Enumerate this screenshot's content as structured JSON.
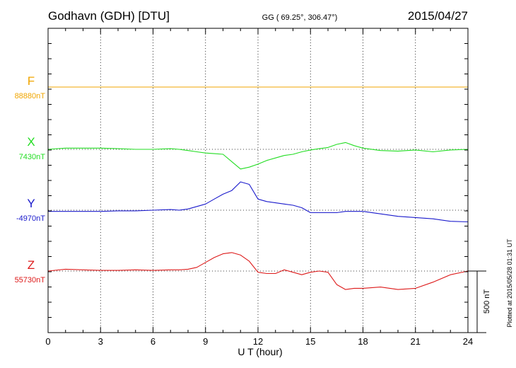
{
  "header": {
    "station": "Godhavn (GDH)  [DTU]",
    "coords": "GG ( 69.25°, 306.47°)",
    "date": "2015/04/27"
  },
  "footer": {
    "plotted": "Plotted at 2015/05/28 01:31  UT"
  },
  "chart_data": {
    "type": "line",
    "xlabel": "U T (hour)",
    "xlim": [
      0,
      24
    ],
    "x_ticks": [
      "0",
      "3",
      "6",
      "9",
      "12",
      "15",
      "18",
      "21",
      "24"
    ],
    "scale_bar": {
      "label": "500 nT",
      "value_nT": 500
    },
    "colors": {
      "F": "#f0a500",
      "X": "#22dd22",
      "Y": "#1a1acc",
      "Z": "#dd1a1a"
    },
    "series": [
      {
        "name": "F",
        "baseline_label": "88880nT",
        "baseline_nT": 88880,
        "x": [
          0,
          24
        ],
        "y": [
          88880,
          88880
        ]
      },
      {
        "name": "X",
        "baseline_label": "7430nT",
        "baseline_nT": 7430,
        "x": [
          0,
          1,
          2,
          3,
          4,
          5,
          6,
          7,
          7.5,
          8,
          8.5,
          9,
          9.5,
          10,
          10.5,
          11,
          11.5,
          12,
          12.5,
          13,
          13.5,
          14,
          14.5,
          15,
          15.5,
          16,
          16.5,
          17,
          17.5,
          18,
          19,
          20,
          21,
          22,
          23,
          24
        ],
        "y": [
          7430,
          7440,
          7440,
          7440,
          7435,
          7430,
          7430,
          7435,
          7430,
          7420,
          7410,
          7400,
          7395,
          7390,
          7330,
          7270,
          7285,
          7310,
          7340,
          7360,
          7380,
          7390,
          7410,
          7425,
          7435,
          7445,
          7470,
          7485,
          7460,
          7440,
          7420,
          7415,
          7425,
          7410,
          7425,
          7430
        ]
      },
      {
        "name": "Y",
        "baseline_label": "-4970nT",
        "baseline_nT": -4970,
        "x": [
          0,
          1,
          2,
          3,
          4,
          5,
          6,
          7,
          7.5,
          8,
          8.5,
          9,
          9.5,
          10,
          10.5,
          11,
          11.5,
          12,
          12.5,
          13,
          13.5,
          14,
          14.5,
          15,
          16,
          16.5,
          17,
          18,
          19,
          20,
          21,
          22,
          23,
          24
        ],
        "y": [
          -4980,
          -4980,
          -4980,
          -4980,
          -4975,
          -4975,
          -4970,
          -4965,
          -4970,
          -4960,
          -4940,
          -4920,
          -4880,
          -4840,
          -4810,
          -4740,
          -4760,
          -4880,
          -4900,
          -4910,
          -4920,
          -4930,
          -4950,
          -4990,
          -4990,
          -4990,
          -4980,
          -4980,
          -5000,
          -5020,
          -5030,
          -5040,
          -5060,
          -5065
        ]
      },
      {
        "name": "Z",
        "baseline_label": "55730nT",
        "baseline_nT": 55730,
        "x": [
          0,
          1,
          2,
          3,
          4,
          5,
          6,
          7,
          7.5,
          8,
          8.5,
          9,
          9.5,
          10,
          10.5,
          11,
          11.5,
          12,
          12.5,
          13,
          13.5,
          14,
          14.5,
          15,
          15.5,
          16,
          16.5,
          17,
          17.5,
          18,
          19,
          20,
          21,
          22,
          23,
          24
        ],
        "y": [
          55730,
          55745,
          55740,
          55735,
          55735,
          55740,
          55735,
          55740,
          55740,
          55745,
          55760,
          55800,
          55840,
          55870,
          55880,
          55860,
          55810,
          55720,
          55710,
          55710,
          55740,
          55720,
          55700,
          55720,
          55730,
          55720,
          55620,
          55580,
          55590,
          55590,
          55600,
          55580,
          55590,
          55640,
          55700,
          55730
        ]
      }
    ]
  }
}
